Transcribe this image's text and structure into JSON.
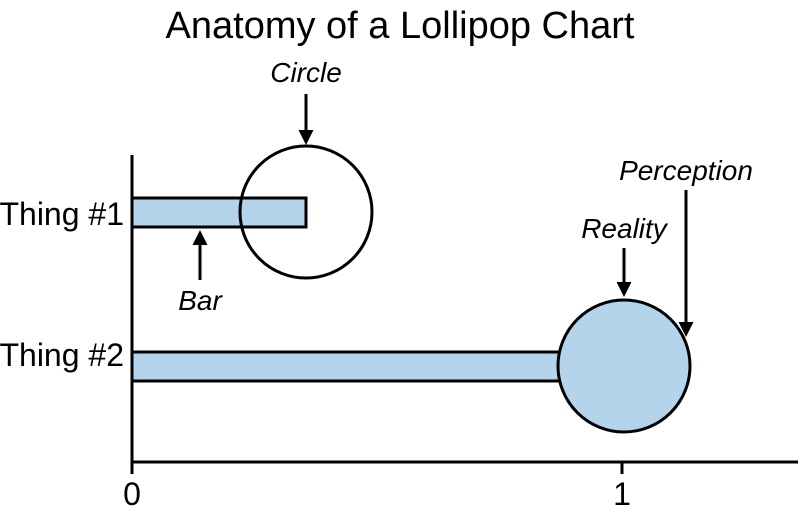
{
  "title": "Anatomy of a Lollipop Chart",
  "categories": [
    "Thing #1",
    "Thing #2"
  ],
  "x_ticks": [
    "0",
    "1"
  ],
  "annotations": {
    "circle": "Circle",
    "bar": "Bar",
    "reality": "Reality",
    "perception": "Perception"
  },
  "colors": {
    "fill": "#b3d4ea",
    "stroke": "#000000"
  }
}
